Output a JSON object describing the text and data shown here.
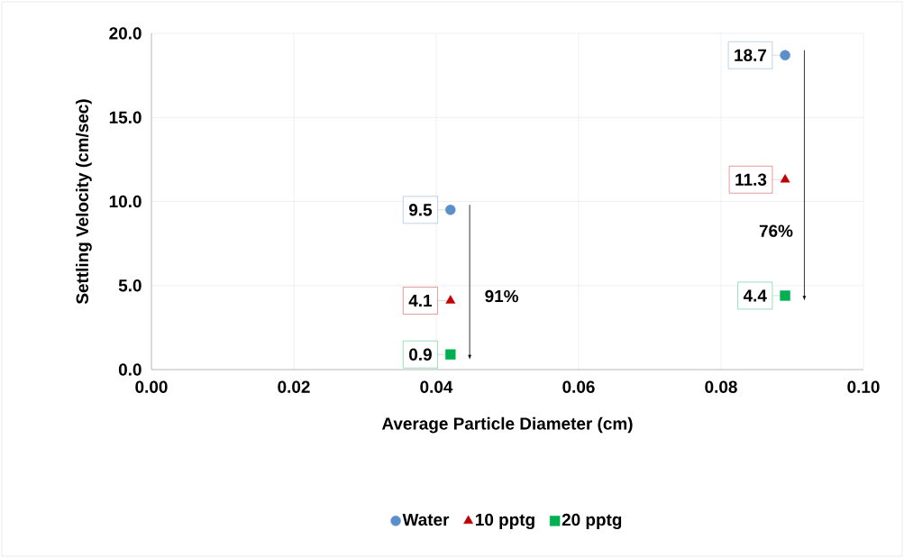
{
  "chart_data": {
    "type": "scatter",
    "xlabel": "Average Particle Diameter (cm)",
    "ylabel": "Settling Velocity (cm/sec)",
    "x": [
      0.042,
      0.089
    ],
    "series": [
      {
        "name": "Water",
        "color": "#5b8fc9",
        "marker": "circle",
        "values": [
          9.5,
          18.7
        ],
        "value_labels": [
          "9.5",
          "18.7"
        ]
      },
      {
        "name": "10 pptg",
        "color": "#c00000",
        "marker": "triangle",
        "values": [
          4.1,
          11.3
        ],
        "value_labels": [
          "4.1",
          "11.3"
        ]
      },
      {
        "name": "20 pptg",
        "color": "#00b050",
        "marker": "square",
        "values": [
          0.9,
          4.4
        ],
        "value_labels": [
          "0.9",
          "4.4"
        ]
      }
    ],
    "annotations": [
      "91%",
      "76%"
    ],
    "xlim": [
      0,
      0.1
    ],
    "ylim": [
      0,
      20
    ],
    "xticks": [
      {
        "value": 0,
        "label": "0.00"
      },
      {
        "value": 0.02,
        "label": "0.02"
      },
      {
        "value": 0.04,
        "label": "0.04"
      },
      {
        "value": 0.06,
        "label": "0.06"
      },
      {
        "value": 0.08,
        "label": "0.08"
      },
      {
        "value": 0.1,
        "label": "0.10"
      }
    ],
    "yticks": [
      {
        "value": 0,
        "label": "0.0"
      },
      {
        "value": 5,
        "label": "5.0"
      },
      {
        "value": 10,
        "label": "10.0"
      },
      {
        "value": 15,
        "label": "15.0"
      },
      {
        "value": 20,
        "label": "20.0"
      }
    ],
    "grid": true,
    "legend": "bottom"
  }
}
